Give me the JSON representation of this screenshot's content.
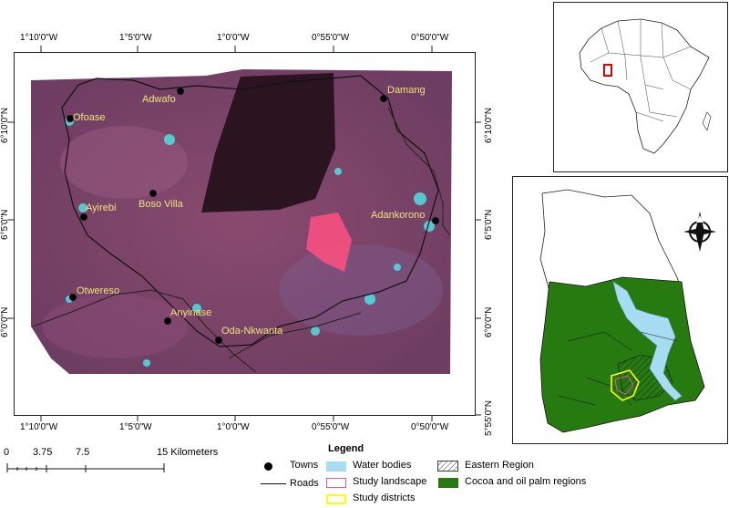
{
  "main_map": {
    "top_ticks_lon": [
      "1°10'0\"W",
      "1°5'0\"W",
      "1°0'0\"W",
      "0°55'0\"W",
      "0°50'0\"W"
    ],
    "bottom_ticks_lon": [
      "1°10'0\"W",
      "1°5'0\"W",
      "1°0'0\"W",
      "0°55'0\"W",
      "0°50'0\"W"
    ],
    "left_ticks_lat": [
      "6°10'0\"N",
      "6°5'0\"N",
      "6°0'0\"N"
    ],
    "right_ticks_lat": [
      "6°10'0\"N",
      "6°5'0\"N",
      "6°0'0\"N",
      "5°55'0\"N"
    ],
    "towns": [
      {
        "name": "Adwafo"
      },
      {
        "name": "Damang"
      },
      {
        "name": "Ofoase"
      },
      {
        "name": "Boso Villa"
      },
      {
        "name": "Ayirebi"
      },
      {
        "name": "Adankorono"
      },
      {
        "name": "Otwereso"
      },
      {
        "name": "Anyinase"
      },
      {
        "name": "Oda-Nkwanta"
      }
    ]
  },
  "scale_bar": {
    "ticks": [
      "0",
      "3.75",
      "7.5",
      "15 Kilometers"
    ]
  },
  "legend": {
    "title": "Legend",
    "items": {
      "towns": "Towns",
      "roads": "Roads",
      "water_bodies": "Water bodies",
      "study_landscape": "Study landscape",
      "study_districts": "Study districts",
      "eastern_region": "Eastern Region",
      "cocoa_oil_palm": "Cocoa and oil palm regions"
    }
  },
  "colors": {
    "water": "#a8dcf2",
    "cocoa_green": "#267a10",
    "study_landscape_outline": "#e05a9c",
    "study_districts_outline": "#ffff00",
    "africa_highlight": "#e00000",
    "town_label": "#f0e27a"
  },
  "icons": {
    "north_arrow": "compass-north-arrow-icon"
  }
}
